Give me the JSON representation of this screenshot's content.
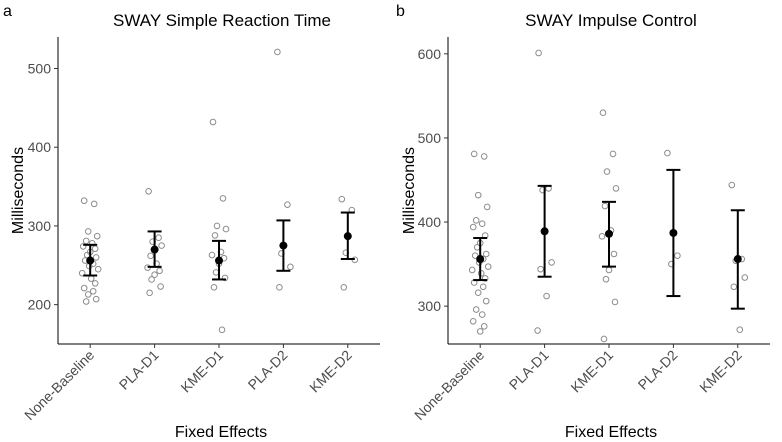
{
  "chart_data": [
    {
      "type": "scatter",
      "panel_label": "a",
      "title": "SWAY Simple Reaction Time",
      "xlabel": "Fixed Effects",
      "ylabel": "Milliseconds",
      "ylim": [
        150,
        540
      ],
      "yticks": [
        200,
        300,
        400,
        500
      ],
      "categories": [
        "None-Baseline",
        "PLA-D1",
        "KME-D1",
        "PLA-D2",
        "KME-D2"
      ],
      "summary": [
        {
          "mean": 256,
          "lower": 237,
          "upper": 276
        },
        {
          "mean": 270,
          "lower": 248,
          "upper": 293
        },
        {
          "mean": 256,
          "lower": 232,
          "upper": 281
        },
        {
          "mean": 275,
          "lower": 243,
          "upper": 307
        },
        {
          "mean": 287,
          "lower": 258,
          "upper": 317
        }
      ],
      "observations": [
        [
          332,
          328,
          293,
          287,
          281,
          278,
          274,
          271,
          267,
          263,
          260,
          256,
          252,
          249,
          245,
          240,
          233,
          227,
          221,
          217,
          213,
          207,
          204
        ],
        [
          344,
          285,
          280,
          275,
          262,
          252,
          247,
          243,
          238,
          232,
          223,
          215
        ],
        [
          432,
          335,
          300,
          296,
          288,
          267,
          263,
          259,
          252,
          241,
          234,
          222,
          168
        ],
        [
          521,
          327,
          265,
          248,
          222
        ],
        [
          334,
          320,
          266,
          257,
          222
        ]
      ]
    },
    {
      "type": "scatter",
      "panel_label": "b",
      "title": "SWAY Impulse Control",
      "xlabel": "Fixed Effects",
      "ylabel": "Milliseconds",
      "ylim": [
        255,
        620
      ],
      "yticks": [
        300,
        400,
        500,
        600
      ],
      "categories": [
        "None-Baseline",
        "PLA-D1",
        "KME-D1",
        "PLA-D2",
        "KME-D2"
      ],
      "summary": [
        {
          "mean": 356,
          "lower": 331,
          "upper": 381
        },
        {
          "mean": 389,
          "lower": 335,
          "upper": 443
        },
        {
          "mean": 386,
          "lower": 347,
          "upper": 424
        },
        {
          "mean": 387,
          "lower": 312,
          "upper": 462
        },
        {
          "mean": 356,
          "lower": 297,
          "upper": 414
        }
      ],
      "observations": [
        [
          481,
          478,
          432,
          418,
          402,
          398,
          394,
          384,
          375,
          370,
          362,
          360,
          356,
          352,
          347,
          343,
          339,
          333,
          328,
          323,
          316,
          306,
          296,
          290,
          282,
          276,
          270
        ],
        [
          601,
          440,
          438,
          352,
          344,
          312,
          271
        ],
        [
          530,
          481,
          460,
          440,
          419,
          390,
          383,
          362,
          343,
          332,
          305,
          261
        ],
        [
          482,
          360,
          350
        ],
        [
          444,
          356,
          354,
          334,
          323,
          272
        ]
      ]
    }
  ]
}
